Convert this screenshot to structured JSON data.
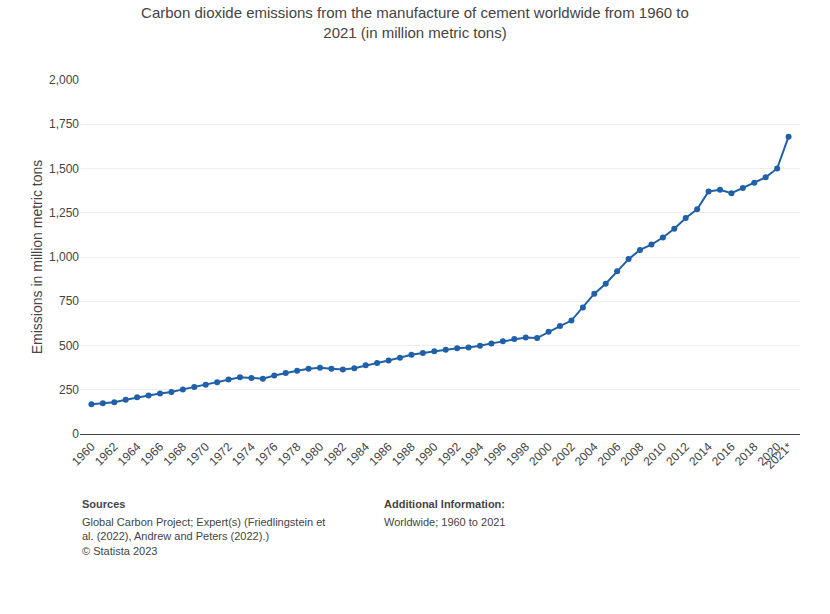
{
  "chart_data": {
    "type": "line",
    "title": "Carbon dioxide emissions from the manufacture of cement worldwide from 1960 to\n2021 (in million metric tons)",
    "ylabel": "Emissions in million metric tons",
    "annotations": [
      "Sources",
      "Global Carbon Project; Expert(s) (Friedlingstein et\nal. (2022), Andrew and Peters (2022).)\n© Statista 2023",
      "Additional Information:",
      "Worldwide; 1960 to 2021"
    ],
    "x": [
      1960,
      1961,
      1962,
      1963,
      1964,
      1965,
      1966,
      1967,
      1968,
      1969,
      1970,
      1971,
      1972,
      1973,
      1974,
      1975,
      1976,
      1977,
      1978,
      1979,
      1980,
      1981,
      1982,
      1983,
      1984,
      1985,
      1986,
      1987,
      1988,
      1989,
      1990,
      1991,
      1992,
      1993,
      1994,
      1995,
      1996,
      1997,
      1998,
      1999,
      2000,
      2001,
      2002,
      2003,
      2004,
      2005,
      2006,
      2007,
      2008,
      2009,
      2010,
      2011,
      2012,
      2013,
      2014,
      2015,
      2016,
      2017,
      2018,
      2019,
      2020,
      2021
    ],
    "values": [
      168,
      174,
      180,
      193,
      207,
      218,
      229,
      237,
      252,
      265,
      278,
      293,
      308,
      320,
      317,
      312,
      330,
      345,
      357,
      368,
      374,
      368,
      364,
      372,
      388,
      401,
      415,
      431,
      448,
      458,
      468,
      476,
      485,
      489,
      498,
      512,
      524,
      537,
      545,
      542,
      578,
      610,
      641,
      714,
      793,
      849,
      920,
      988,
      1040,
      1070,
      1110,
      1160,
      1220,
      1270,
      1370,
      1380,
      1360,
      1390,
      1420,
      1450,
      1500,
      1680
    ],
    "color": "#2060a8",
    "marker": "circle",
    "xlim": [
      1959,
      2022
    ],
    "xticks": [
      1960,
      1962,
      1964,
      1966,
      1968,
      1970,
      1972,
      1974,
      1976,
      1978,
      1980,
      1982,
      1984,
      1986,
      1988,
      1990,
      1992,
      1994,
      1996,
      1998,
      2000,
      2002,
      2004,
      2006,
      2008,
      2010,
      2012,
      2014,
      2016,
      2018,
      2020,
      {
        "value": 2021,
        "label": "2021*"
      }
    ],
    "ylim": [
      0,
      2000
    ],
    "yticks": [
      0,
      250,
      500,
      750,
      {
        "value": 1000,
        "label": "1,000"
      },
      {
        "value": 1250,
        "label": "1,250"
      },
      {
        "value": 1500,
        "label": "1,500"
      },
      {
        "value": 1750,
        "label": "1,750"
      },
      {
        "value": 2000,
        "label": "2,000"
      }
    ],
    "grid": true
  }
}
